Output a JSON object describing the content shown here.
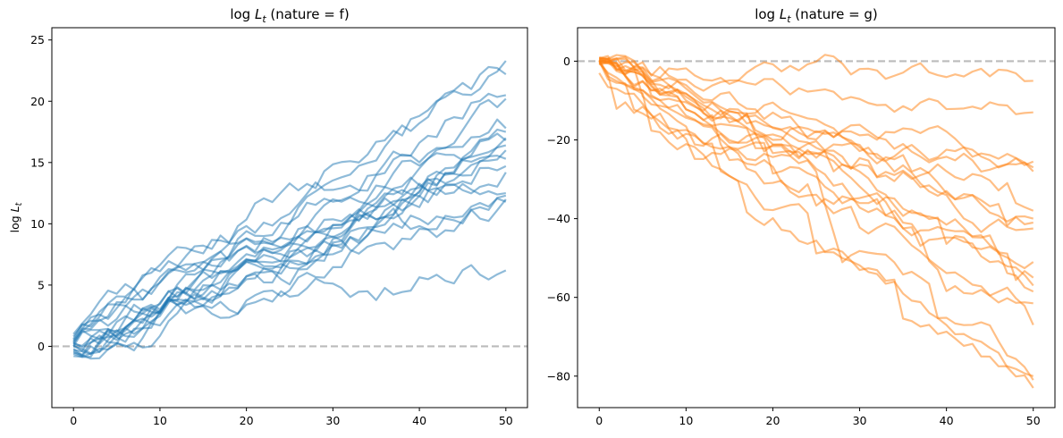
{
  "chart_data": [
    {
      "type": "line",
      "title": "log L_t (nature = f)",
      "title_parts": [
        "log ",
        "L",
        "t",
        " (nature = f)"
      ],
      "ylabel": "log L_t",
      "ylabel_parts": [
        "log ",
        "L",
        "t"
      ],
      "xlabel": "",
      "color": "#1f77b4",
      "line_alpha": 0.5,
      "xlim": [
        -2.5,
        52.5
      ],
      "ylim": [
        -5.0,
        26.0
      ],
      "xticks": [
        0,
        10,
        20,
        30,
        40,
        50
      ],
      "yticks": [
        0,
        5,
        10,
        15,
        20,
        25
      ],
      "reference_line": {
        "y": 0,
        "style": "dashed",
        "color": "#bbbbbb"
      },
      "grid": false,
      "series": [
        {
          "x": [
            0,
            50
          ],
          "y": [
            1.0,
            23.3
          ]
        },
        {
          "x": [
            0,
            50
          ],
          "y": [
            0.8,
            22.2
          ]
        },
        {
          "x": [
            0,
            50
          ],
          "y": [
            0.5,
            20.5
          ]
        },
        {
          "x": [
            0,
            50
          ],
          "y": [
            0.3,
            20.2
          ]
        },
        {
          "x": [
            0,
            50
          ],
          "y": [
            0.4,
            17.8
          ]
        },
        {
          "x": [
            0,
            50
          ],
          "y": [
            0.2,
            17.5
          ]
        },
        {
          "x": [
            0,
            50
          ],
          "y": [
            0.0,
            17.0
          ]
        },
        {
          "x": [
            0,
            50
          ],
          "y": [
            0.6,
            16.8
          ]
        },
        {
          "x": [
            0,
            50
          ],
          "y": [
            -0.2,
            16.4
          ]
        },
        {
          "x": [
            0,
            50
          ],
          "y": [
            0.1,
            16.0
          ]
        },
        {
          "x": [
            0,
            50
          ],
          "y": [
            -0.4,
            15.3
          ]
        },
        {
          "x": [
            0,
            50
          ],
          "y": [
            0.3,
            14.7
          ]
        },
        {
          "x": [
            0,
            50
          ],
          "y": [
            -0.6,
            14.2
          ]
        },
        {
          "x": [
            0,
            50
          ],
          "y": [
            0.0,
            12.5
          ]
        },
        {
          "x": [
            0,
            50
          ],
          "y": [
            -0.5,
            12.3
          ]
        },
        {
          "x": [
            0,
            50
          ],
          "y": [
            0.2,
            12.0
          ]
        },
        {
          "x": [
            0,
            50
          ],
          "y": [
            -0.8,
            11.8
          ]
        },
        {
          "x": [
            0,
            50
          ],
          "y": [
            -0.3,
            6.2
          ]
        }
      ]
    },
    {
      "type": "line",
      "title": "log L_t (nature = g)",
      "title_parts": [
        "log ",
        "L",
        "t",
        " (nature = g)"
      ],
      "ylabel": "",
      "xlabel": "",
      "color": "#ff7f0e",
      "line_alpha": 0.5,
      "xlim": [
        -2.5,
        52.5
      ],
      "ylim": [
        -88.0,
        8.5
      ],
      "xticks": [
        0,
        10,
        20,
        30,
        40,
        50
      ],
      "yticks": [
        0,
        -20,
        -40,
        -60,
        -80
      ],
      "reference_line": {
        "y": 0,
        "style": "dashed",
        "color": "#bbbbbb"
      },
      "grid": false,
      "series": [
        {
          "x": [
            0,
            50
          ],
          "y": [
            0.5,
            -5.0
          ]
        },
        {
          "x": [
            0,
            50
          ],
          "y": [
            1.0,
            -13.0
          ]
        },
        {
          "x": [
            0,
            50
          ],
          "y": [
            0.0,
            -25.5
          ]
        },
        {
          "x": [
            0,
            50
          ],
          "y": [
            0.3,
            -27.0
          ]
        },
        {
          "x": [
            0,
            50
          ],
          "y": [
            -0.5,
            -28.0
          ]
        },
        {
          "x": [
            0,
            50
          ],
          "y": [
            0.8,
            -38.0
          ]
        },
        {
          "x": [
            0,
            50
          ],
          "y": [
            0.2,
            -40.0
          ]
        },
        {
          "x": [
            0,
            50
          ],
          "y": [
            -0.3,
            -41.0
          ]
        },
        {
          "x": [
            0,
            50
          ],
          "y": [
            0.6,
            -42.5
          ]
        },
        {
          "x": [
            0,
            50
          ],
          "y": [
            0.1,
            -51.0
          ]
        },
        {
          "x": [
            0,
            50
          ],
          "y": [
            -0.8,
            -55.0
          ]
        },
        {
          "x": [
            0,
            50
          ],
          "y": [
            0.4,
            -57.0
          ]
        },
        {
          "x": [
            0,
            50
          ],
          "y": [
            -0.2,
            -58.5
          ]
        },
        {
          "x": [
            0,
            50
          ],
          "y": [
            0.7,
            -61.5
          ]
        },
        {
          "x": [
            0,
            50
          ],
          "y": [
            0.0,
            -67.0
          ]
        },
        {
          "x": [
            0,
            50
          ],
          "y": [
            -0.6,
            -80.0
          ]
        },
        {
          "x": [
            0,
            50
          ],
          "y": [
            0.3,
            -81.0
          ]
        },
        {
          "x": [
            0,
            50
          ],
          "y": [
            -3.0,
            -83.0
          ]
        }
      ]
    }
  ]
}
